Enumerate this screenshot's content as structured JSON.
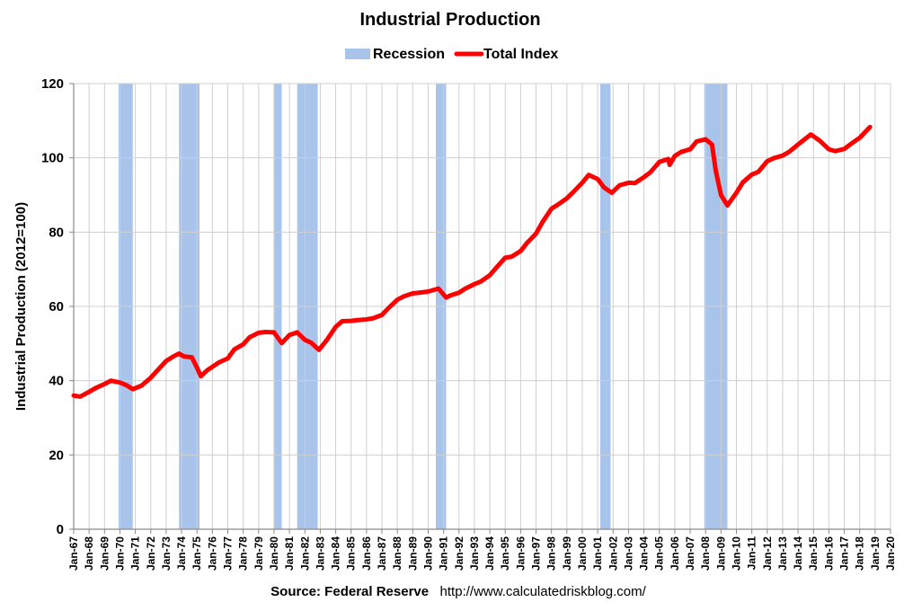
{
  "chart_data": {
    "type": "line",
    "title": "Industrial Production",
    "xlabel": "",
    "ylabel": "Industrial Production (2012=100)",
    "legend": {
      "placement": "top-center",
      "items": [
        {
          "name": "Recession",
          "color": "#a9c4eb",
          "kind": "band"
        },
        {
          "name": "Total Index",
          "color": "#ff0000",
          "kind": "line"
        }
      ]
    },
    "x_axis": {
      "type": "date",
      "range": [
        "1967-01",
        "2020-01"
      ],
      "tick_labels": [
        "Jan-67",
        "Jan-68",
        "Jan-69",
        "Jan-70",
        "Jan-71",
        "Jan-72",
        "Jan-73",
        "Jan-74",
        "Jan-75",
        "Jan-76",
        "Jan-77",
        "Jan-78",
        "Jan-79",
        "Jan-80",
        "Jan-81",
        "Jan-82",
        "Jan-83",
        "Jan-84",
        "Jan-85",
        "Jan-86",
        "Jan-87",
        "Jan-88",
        "Jan-89",
        "Jan-90",
        "Jan-91",
        "Jan-92",
        "Jan-93",
        "Jan-94",
        "Jan-95",
        "Jan-96",
        "Jan-97",
        "Jan-98",
        "Jan-99",
        "Jan-00",
        "Jan-01",
        "Jan-02",
        "Jan-03",
        "Jan-04",
        "Jan-05",
        "Jan-06",
        "Jan-07",
        "Jan-08",
        "Jan-09",
        "Jan-10",
        "Jan-11",
        "Jan-12",
        "Jan-13",
        "Jan-14",
        "Jan-15",
        "Jan-16",
        "Jan-17",
        "Jan-18",
        "Jan-19",
        "Jan-20"
      ]
    },
    "y_axis": {
      "ylim": [
        0,
        120
      ],
      "ticks": [
        0,
        20,
        40,
        60,
        80,
        100,
        120
      ]
    },
    "grid": true,
    "series": [
      {
        "name": "Total Index",
        "color": "#ff0000",
        "points": [
          [
            "1967-01",
            36.0
          ],
          [
            "1967-06",
            35.7
          ],
          [
            "1968-01",
            37.0
          ],
          [
            "1968-06",
            38.0
          ],
          [
            "1969-01",
            39.1
          ],
          [
            "1969-06",
            40.0
          ],
          [
            "1970-01",
            39.5
          ],
          [
            "1970-06",
            38.8
          ],
          [
            "1970-11",
            37.7
          ],
          [
            "1971-06",
            38.7
          ],
          [
            "1972-01",
            40.8
          ],
          [
            "1972-06",
            42.7
          ],
          [
            "1973-01",
            45.3
          ],
          [
            "1973-06",
            46.4
          ],
          [
            "1973-11",
            47.3
          ],
          [
            "1974-03",
            46.5
          ],
          [
            "1974-09",
            46.3
          ],
          [
            "1975-01",
            43.5
          ],
          [
            "1975-04",
            41.2
          ],
          [
            "1975-09",
            42.8
          ],
          [
            "1976-06",
            44.9
          ],
          [
            "1977-01",
            46.0
          ],
          [
            "1977-06",
            48.4
          ],
          [
            "1978-01",
            49.8
          ],
          [
            "1978-06",
            51.7
          ],
          [
            "1979-01",
            52.9
          ],
          [
            "1979-06",
            53.1
          ],
          [
            "1980-01",
            53.0
          ],
          [
            "1980-07",
            50.1
          ],
          [
            "1981-01",
            52.3
          ],
          [
            "1981-07",
            53.0
          ],
          [
            "1982-01",
            51.0
          ],
          [
            "1982-06",
            50.2
          ],
          [
            "1982-12",
            48.3
          ],
          [
            "1983-06",
            50.9
          ],
          [
            "1984-01",
            54.5
          ],
          [
            "1984-06",
            56.0
          ],
          [
            "1985-01",
            56.1
          ],
          [
            "1985-06",
            56.3
          ],
          [
            "1986-01",
            56.5
          ],
          [
            "1986-06",
            56.8
          ],
          [
            "1987-01",
            57.7
          ],
          [
            "1987-06",
            59.5
          ],
          [
            "1988-01",
            61.8
          ],
          [
            "1988-06",
            62.7
          ],
          [
            "1989-01",
            63.5
          ],
          [
            "1989-06",
            63.7
          ],
          [
            "1990-01",
            64.0
          ],
          [
            "1990-09",
            64.8
          ],
          [
            "1991-03",
            62.4
          ],
          [
            "1991-06",
            62.9
          ],
          [
            "1992-01",
            63.7
          ],
          [
            "1992-06",
            64.8
          ],
          [
            "1993-01",
            66.0
          ],
          [
            "1993-06",
            66.7
          ],
          [
            "1994-01",
            68.4
          ],
          [
            "1994-06",
            70.4
          ],
          [
            "1995-01",
            73.1
          ],
          [
            "1995-06",
            73.4
          ],
          [
            "1996-01",
            74.9
          ],
          [
            "1996-06",
            77.1
          ],
          [
            "1997-01",
            79.6
          ],
          [
            "1997-06",
            82.7
          ],
          [
            "1998-01",
            86.3
          ],
          [
            "1998-06",
            87.4
          ],
          [
            "1999-01",
            89.1
          ],
          [
            "1999-06",
            90.8
          ],
          [
            "2000-01",
            93.3
          ],
          [
            "2000-06",
            95.4
          ],
          [
            "2001-01",
            94.3
          ],
          [
            "2001-06",
            92.0
          ],
          [
            "2001-12",
            90.6
          ],
          [
            "2002-06",
            92.6
          ],
          [
            "2003-01",
            93.3
          ],
          [
            "2003-06",
            93.2
          ],
          [
            "2004-01",
            94.8
          ],
          [
            "2004-06",
            96.1
          ],
          [
            "2005-01",
            98.9
          ],
          [
            "2005-08",
            99.7
          ],
          [
            "2005-09",
            98.1
          ],
          [
            "2006-01",
            100.5
          ],
          [
            "2006-06",
            101.6
          ],
          [
            "2007-01",
            102.3
          ],
          [
            "2007-06",
            104.4
          ],
          [
            "2008-01",
            105.0
          ],
          [
            "2008-06",
            103.6
          ],
          [
            "2008-09",
            96.4
          ],
          [
            "2009-01",
            90.0
          ],
          [
            "2009-06",
            87.2
          ],
          [
            "2010-01",
            90.6
          ],
          [
            "2010-06",
            93.4
          ],
          [
            "2011-01",
            95.5
          ],
          [
            "2011-06",
            96.2
          ],
          [
            "2012-01",
            99.1
          ],
          [
            "2012-06",
            99.9
          ],
          [
            "2013-01",
            100.6
          ],
          [
            "2013-06",
            101.6
          ],
          [
            "2014-01",
            103.6
          ],
          [
            "2014-11",
            106.3
          ],
          [
            "2015-06",
            104.6
          ],
          [
            "2016-01",
            102.3
          ],
          [
            "2016-06",
            101.8
          ],
          [
            "2017-01",
            102.4
          ],
          [
            "2017-06",
            103.7
          ],
          [
            "2018-01",
            105.4
          ],
          [
            "2018-09",
            108.3
          ]
        ]
      }
    ],
    "recessions": [
      [
        "1969-12",
        "1970-11"
      ],
      [
        "1973-11",
        "1975-03"
      ],
      [
        "1980-01",
        "1980-07"
      ],
      [
        "1981-07",
        "1982-11"
      ],
      [
        "1990-07",
        "1991-03"
      ],
      [
        "2001-03",
        "2001-11"
      ],
      [
        "2007-12",
        "2009-06"
      ]
    ],
    "source": {
      "label": "Source: Federal Reserve",
      "url": "http://www.calculatedriskblog.com/"
    }
  },
  "colors": {
    "background": "#ffffff",
    "plot_background": "#ffffff",
    "grid": "#cfcfcf",
    "axis": "#8a8a8a",
    "recession": "#a9c4eb",
    "line": "#ff0000"
  }
}
